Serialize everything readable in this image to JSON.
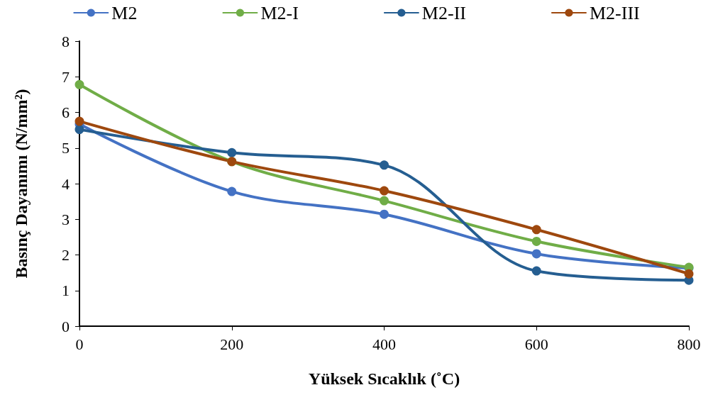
{
  "chart_data": {
    "type": "line",
    "xlabel": "Yüksek Sıcaklık (˚C)",
    "ylabel": "Basınç Dayanımı (N/mm²)",
    "x": [
      0,
      200,
      400,
      600,
      800
    ],
    "series": [
      {
        "name": "M2",
        "color": "#4472c4",
        "values": [
          5.67,
          3.78,
          3.14,
          2.03,
          1.63
        ]
      },
      {
        "name": "M2-I",
        "color": "#70ad47",
        "values": [
          6.78,
          4.62,
          3.52,
          2.38,
          1.65
        ]
      },
      {
        "name": "M2-II",
        "color": "#255e91",
        "values": [
          5.52,
          4.87,
          4.52,
          1.55,
          1.29
        ]
      },
      {
        "name": "M2-III",
        "color": "#9e480e",
        "values": [
          5.75,
          4.62,
          3.8,
          2.71,
          1.47
        ]
      }
    ],
    "xlim": [
      0,
      800
    ],
    "xticks": [
      0,
      200,
      400,
      600,
      800
    ],
    "ylim": [
      0,
      8
    ],
    "yticks": [
      0,
      1,
      2,
      3,
      4,
      5,
      6,
      7,
      8
    ],
    "grid": false,
    "legend": "top",
    "marker": "circle",
    "line_style": "solid"
  }
}
